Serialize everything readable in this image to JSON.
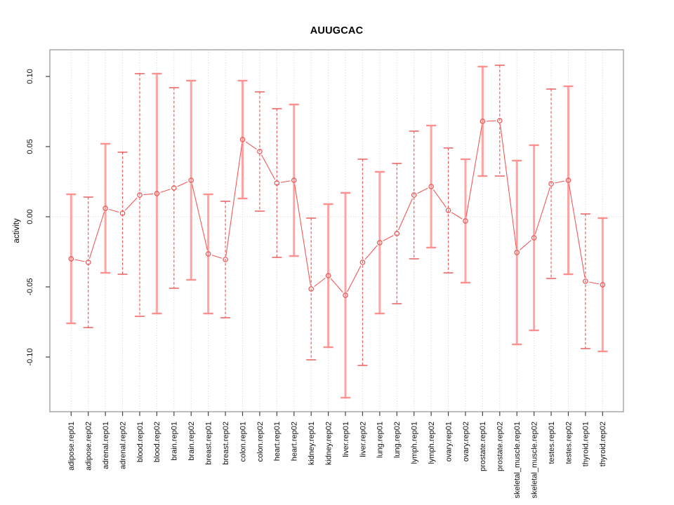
{
  "figure": {
    "title": "AUUGCAC",
    "ylabel": "activity"
  },
  "chart_data": {
    "type": "line",
    "subtype": "points-with-error-bars",
    "title": "AUUGCAC",
    "xlabel": "",
    "ylabel": "activity",
    "ylim": [
      -0.139,
      0.119
    ],
    "yticks": [
      0.1,
      0.05,
      0.0,
      -0.05,
      -0.1
    ],
    "ytick_labels": [
      "0.10",
      "0.05",
      "0.00",
      "-0.05",
      "-0.10"
    ],
    "grid": {
      "vertical": "dotted line at every category",
      "horizontal": "dotted line at y=0 only"
    },
    "legend": "none",
    "categories": [
      "adipose.rep01",
      "adipose.rep02",
      "adrenal.rep01",
      "adrenal.rep02",
      "blood.rep01",
      "blood.rep02",
      "brain.rep01",
      "brain.rep02",
      "breast.rep01",
      "breast.rep02",
      "colon.rep01",
      "colon.rep02",
      "heart.rep01",
      "heart.rep02",
      "kidney.rep01",
      "kidney.rep02",
      "liver.rep01",
      "liver.rep02",
      "lung.rep01",
      "lung.rep02",
      "lymph.rep01",
      "lymph.rep02",
      "ovary.rep01",
      "ovary.rep02",
      "prostate.rep01",
      "prostate.rep02",
      "skeletal_muscle.rep01",
      "skeletal_muscle.rep02",
      "testes.rep01",
      "testes.rep02",
      "thyroid.rep01",
      "thyroid.rep02"
    ],
    "series": [
      {
        "name": "activity",
        "values": [
          -0.03,
          -0.0325,
          0.006,
          0.0025,
          0.0155,
          0.0165,
          0.0205,
          0.026,
          -0.0265,
          -0.0305,
          0.055,
          0.0465,
          0.024,
          0.026,
          -0.0515,
          -0.042,
          -0.056,
          -0.0325,
          -0.0185,
          -0.012,
          0.0155,
          0.0215,
          0.0045,
          -0.003,
          0.068,
          0.0685,
          -0.0255,
          -0.015,
          0.0235,
          0.026,
          -0.046,
          -0.0485
        ],
        "error_high": [
          0.016,
          0.014,
          0.052,
          0.046,
          0.102,
          0.102,
          0.092,
          0.097,
          0.016,
          0.011,
          0.097,
          0.089,
          0.077,
          0.08,
          -0.001,
          0.009,
          0.017,
          0.041,
          0.032,
          0.038,
          0.061,
          0.065,
          0.049,
          0.041,
          0.107,
          0.108,
          0.04,
          0.051,
          0.091,
          0.093,
          0.002,
          -0.001
        ],
        "error_low": [
          -0.076,
          -0.079,
          -0.04,
          -0.041,
          -0.071,
          -0.069,
          -0.051,
          -0.045,
          -0.069,
          -0.072,
          0.013,
          0.004,
          -0.029,
          -0.028,
          -0.102,
          -0.093,
          -0.129,
          -0.106,
          -0.069,
          -0.062,
          -0.03,
          -0.022,
          -0.04,
          -0.047,
          0.029,
          0.029,
          -0.091,
          -0.081,
          -0.044,
          -0.041,
          -0.094,
          -0.096
        ],
        "error_bar_styles": [
          "solid",
          "dashed",
          "solid",
          "dashed",
          "dashed",
          "solid",
          "dashed",
          "solid",
          "solid",
          "dashed",
          "solid",
          "dashed",
          "dashed",
          "solid",
          "dashed",
          "solid",
          "solid",
          "dashed",
          "solid",
          "dashed",
          "dashed",
          "solid",
          "dashed",
          "solid",
          "solid",
          "dashed",
          "solid",
          "solid",
          "dashed",
          "solid",
          "dashed",
          "solid"
        ]
      }
    ],
    "colors": {
      "point": "#e94f4f",
      "line": "#ef5a5a",
      "error_bar_solid": "#ffa3a3",
      "error_cap_solid": "#ff9090",
      "error_bar_dashed": "#ec5f5f",
      "grid": "#d9d9d9",
      "box": "#9b9b9b",
      "tick": "#444444",
      "text": "#111111"
    }
  }
}
